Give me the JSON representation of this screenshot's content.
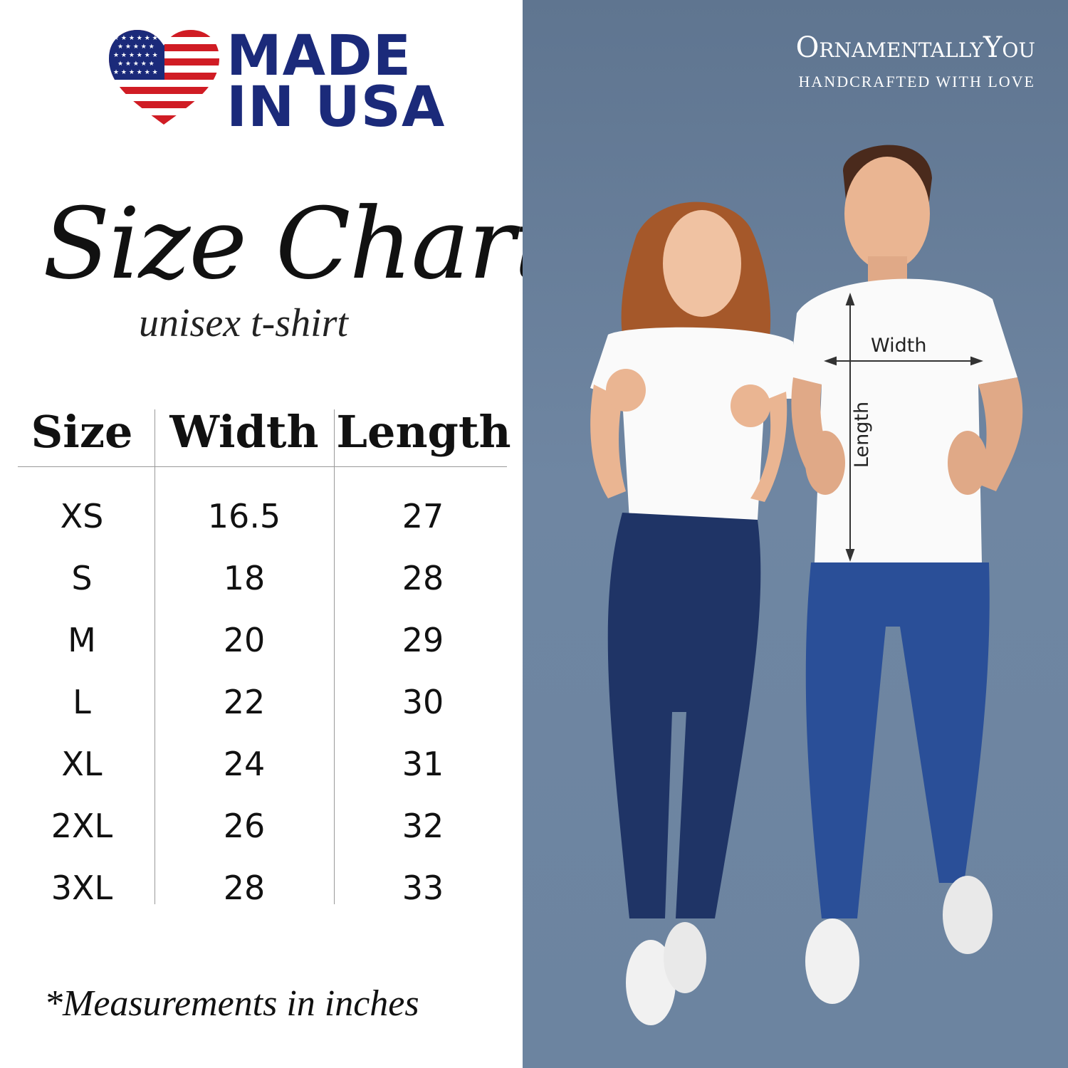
{
  "badge": {
    "line1": "MADE",
    "line2": "IN USA",
    "colors": {
      "navy": "#1b2a7a",
      "red": "#d01c24"
    }
  },
  "title": "Size Chart",
  "subtitle": "unisex t-shirt",
  "table": {
    "headers": [
      "Size",
      "Width",
      "Length"
    ],
    "rows": [
      [
        "XS",
        "16.5",
        "27"
      ],
      [
        "S",
        "18",
        "28"
      ],
      [
        "M",
        "20",
        "29"
      ],
      [
        "L",
        "22",
        "30"
      ],
      [
        "XL",
        "24",
        "31"
      ],
      [
        "2XL",
        "26",
        "32"
      ],
      [
        "3XL",
        "28",
        "33"
      ]
    ]
  },
  "footnote": "*Measurements in inches",
  "brand": {
    "name": "OrnamentallyYou",
    "tagline": "HANDCRAFTED WITH LOVE"
  },
  "photo": {
    "width_label": "Width",
    "length_label": "Length",
    "background": "#6c84a0"
  }
}
